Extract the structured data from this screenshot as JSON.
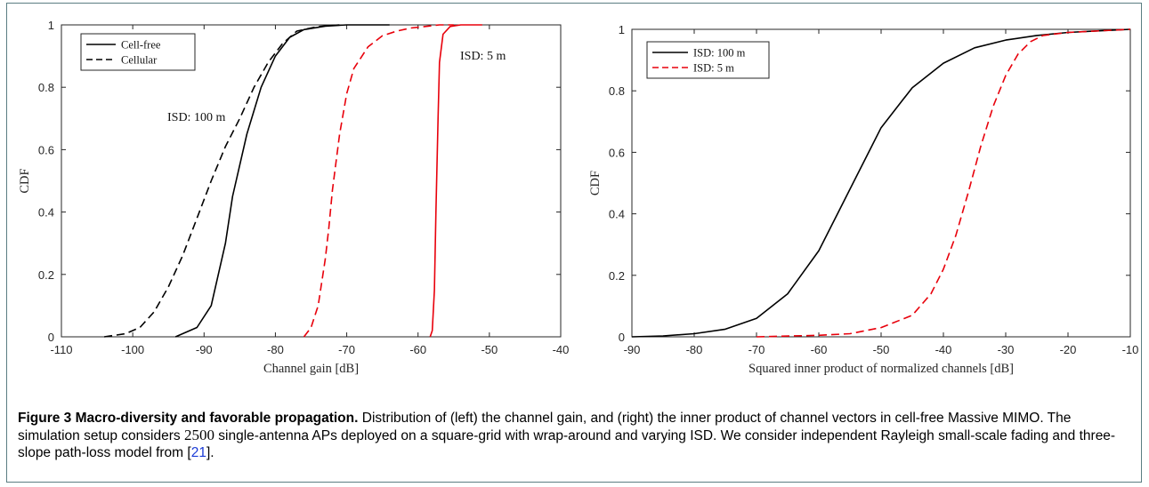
{
  "chart_data": [
    {
      "type": "line",
      "xlabel": "Channel gain [dB]",
      "ylabel": "CDF",
      "xlim": [
        -110,
        -40
      ],
      "ylim": [
        0,
        1
      ],
      "xticks": [
        "-110",
        "-100",
        "-90",
        "-80",
        "-70",
        "-60",
        "-50",
        "-40"
      ],
      "yticks": [
        "0",
        "0.2",
        "0.4",
        "0.6",
        "0.8",
        "1"
      ],
      "legend": [
        "Cell-free",
        "Cellular"
      ],
      "legend_position": "top-left",
      "annotations": [
        "ISD: 100 m",
        "ISD: 5 m"
      ],
      "series": [
        {
          "name": "Cell-free",
          "isd": "ISD: 100 m",
          "color": "#000000",
          "dash": "solid",
          "x": [
            -94,
            -91,
            -89,
            -88,
            -87,
            -86,
            -84,
            -82,
            -80,
            -78,
            -76,
            -73,
            -70,
            -68,
            -64
          ],
          "y": [
            0.0,
            0.03,
            0.1,
            0.2,
            0.3,
            0.45,
            0.65,
            0.8,
            0.9,
            0.96,
            0.985,
            0.996,
            1.0,
            1.0,
            1.0
          ]
        },
        {
          "name": "Cellular",
          "isd": "ISD: 100 m",
          "color": "#000000",
          "dash": "dashed",
          "x": [
            -104,
            -101,
            -99,
            -97,
            -95,
            -93,
            -91,
            -89,
            -87,
            -85,
            -83,
            -81,
            -79,
            -77,
            -74,
            -71
          ],
          "y": [
            0.0,
            0.01,
            0.03,
            0.08,
            0.16,
            0.26,
            0.38,
            0.5,
            0.61,
            0.7,
            0.8,
            0.88,
            0.94,
            0.98,
            0.995,
            1.0
          ]
        },
        {
          "name": "Cell-free",
          "isd": "ISD: 5 m",
          "color": "#e8000b",
          "dash": "solid",
          "x": [
            -58.3,
            -58,
            -57.7,
            -57.5,
            -57.2,
            -57,
            -56.5,
            -55.5,
            -54,
            -51
          ],
          "y": [
            0.0,
            0.02,
            0.15,
            0.4,
            0.7,
            0.88,
            0.97,
            0.995,
            1.0,
            1.0
          ]
        },
        {
          "name": "Cellular",
          "isd": "ISD: 5 m",
          "color": "#e8000b",
          "dash": "dashed",
          "x": [
            -76,
            -75,
            -74,
            -73,
            -72.5,
            -72,
            -71,
            -70,
            -69,
            -67,
            -65,
            -63,
            -61,
            -59,
            -57,
            -55
          ],
          "y": [
            0.0,
            0.03,
            0.1,
            0.25,
            0.35,
            0.47,
            0.65,
            0.78,
            0.86,
            0.93,
            0.965,
            0.98,
            0.99,
            0.995,
            1.0,
            1.0
          ]
        }
      ]
    },
    {
      "type": "line",
      "xlabel": "Squared inner product of normalized channels [dB]",
      "ylabel": "CDF",
      "xlim": [
        -90,
        -10
      ],
      "ylim": [
        0,
        1
      ],
      "xticks": [
        "-90",
        "-80",
        "-70",
        "-60",
        "-50",
        "-40",
        "-30",
        "-20",
        "-10"
      ],
      "yticks": [
        "0",
        "0.2",
        "0.4",
        "0.6",
        "0.8",
        "1"
      ],
      "legend": [
        "ISD: 100 m",
        "ISD: 5 m"
      ],
      "legend_position": "top-left",
      "series": [
        {
          "name": "ISD: 100 m",
          "color": "#000000",
          "dash": "solid",
          "x": [
            -90,
            -85,
            -80,
            -75,
            -70,
            -65,
            -60,
            -57,
            -55,
            -52,
            -50,
            -45,
            -40,
            -35,
            -30,
            -25,
            -20,
            -15,
            -10
          ],
          "y": [
            0.0,
            0.003,
            0.01,
            0.025,
            0.06,
            0.14,
            0.28,
            0.4,
            0.48,
            0.6,
            0.68,
            0.81,
            0.89,
            0.94,
            0.965,
            0.98,
            0.99,
            0.995,
            1.0
          ]
        },
        {
          "name": "ISD: 5 m",
          "color": "#e8000b",
          "dash": "dashed",
          "x": [
            -70,
            -60,
            -55,
            -50,
            -45,
            -42,
            -40,
            -38,
            -36,
            -34,
            -32,
            -30,
            -28,
            -26,
            -24,
            -20,
            -10
          ],
          "y": [
            0.0,
            0.005,
            0.01,
            0.03,
            0.07,
            0.14,
            0.22,
            0.33,
            0.47,
            0.62,
            0.75,
            0.85,
            0.92,
            0.96,
            0.98,
            0.99,
            1.0
          ]
        }
      ]
    }
  ],
  "caption": {
    "label": "Figure 3",
    "title": "Macro-diversity and favorable propagation.",
    "text_1": "Distribution of (left) the channel gain, and (right) the inner product of channel vectors in cell-free Massive MIMO. The simulation setup considers",
    "number": "2500",
    "text_2": "single-antenna APs deployed on a square-grid with wrap-around and varying ISD. We consider independent Rayleigh small-scale fading and three-slope path-loss model from [",
    "cite": "21",
    "text_3": "]."
  }
}
